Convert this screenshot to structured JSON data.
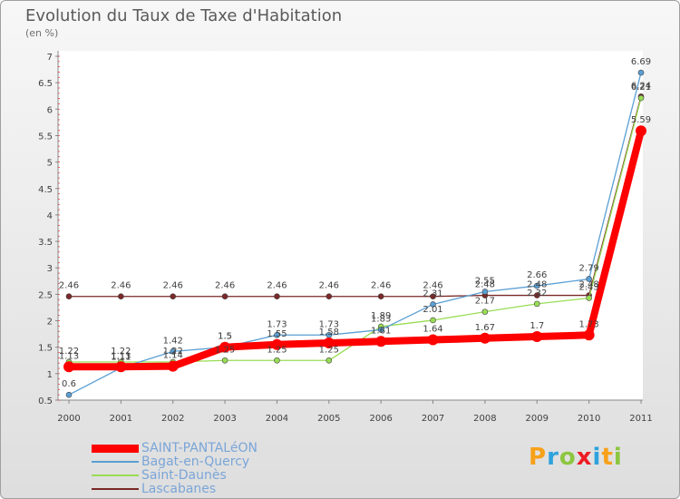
{
  "header": {
    "title": "Evolution du Taux de Taxe d'Habitation",
    "subtitle": "(en %)"
  },
  "logo": {
    "letters": [
      "P",
      "r",
      "o",
      "x",
      "i",
      "t",
      "i"
    ],
    "colors": [
      "#f7a11a",
      "#2ea3dd",
      "#8cc63f",
      "#ed1c24",
      "#2ea3dd",
      "#f7a11a",
      "#8cc63f"
    ]
  },
  "chart_data": {
    "type": "line",
    "title": "Evolution du Taux de Taxe d'Habitation",
    "ylabel": "(en %)",
    "xlabel": "",
    "ylim": [
      0.5,
      7
    ],
    "yticks": [
      "0.5",
      "1",
      "1.5",
      "2",
      "2.5",
      "3",
      "3.5",
      "4",
      "4.5",
      "5",
      "5.5",
      "6",
      "6.5",
      "7"
    ],
    "categories": [
      "2000",
      "2001",
      "2002",
      "2003",
      "2004",
      "2005",
      "2006",
      "2007",
      "2008",
      "2009",
      "2010",
      "2011"
    ],
    "series": [
      {
        "name": "SAINT-PANTALéON",
        "color": "#ff0000",
        "values": [
          1.13,
          1.13,
          1.14,
          1.5,
          1.55,
          1.58,
          1.61,
          1.64,
          1.67,
          1.7,
          1.73,
          5.59
        ],
        "labels": [
          "1.13",
          "1.13",
          "1.14",
          "1.5",
          "1.55",
          "1.58",
          "1.61",
          "1.64",
          "1.67",
          "1.7",
          "1.73",
          "5.59"
        ]
      },
      {
        "name": "Bagat-en-Quercy",
        "color": "#5a9fd4",
        "values": [
          0.6,
          1.11,
          1.42,
          1.5,
          1.73,
          1.73,
          1.83,
          2.31,
          2.55,
          2.66,
          2.79,
          6.69
        ],
        "labels": [
          "0.6",
          "1.11",
          "1.42",
          "1.5",
          "1.73",
          "1.73",
          "1.83",
          "2.31",
          "2.55",
          "2.66",
          "2.79",
          "6.69"
        ]
      },
      {
        "name": "Saint-Daunès",
        "color": "#99dd55",
        "values": [
          1.22,
          1.22,
          1.22,
          1.25,
          1.25,
          1.25,
          1.89,
          2.01,
          2.17,
          2.32,
          2.43,
          6.21
        ],
        "labels": [
          "1.22",
          "1.22",
          "1.22",
          "1.25",
          "1.25",
          "1.25",
          "1.89",
          "2.01",
          "2.17",
          "2.32",
          "2.43",
          "6.21"
        ]
      },
      {
        "name": "Lascabanes",
        "color": "#7a2828",
        "values": [
          2.46,
          2.46,
          2.46,
          2.46,
          2.46,
          2.46,
          2.46,
          2.46,
          2.48,
          2.48,
          2.48,
          6.24
        ],
        "labels": [
          "2.46",
          "2.46",
          "2.46",
          "2.46",
          "2.46",
          "2.46",
          "2.46",
          "2.46",
          "2.48",
          "2.48",
          "2.48",
          "6.24"
        ]
      }
    ]
  }
}
